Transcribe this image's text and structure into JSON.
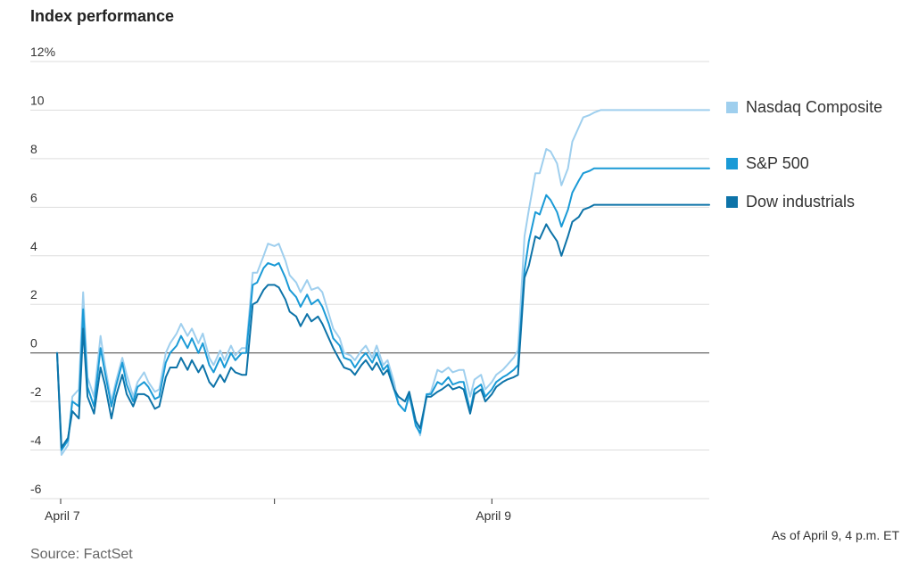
{
  "title": "Index performance",
  "source": "Source: FactSet",
  "as_of": "As of April 9, 4 p.m. ET",
  "colors": {
    "nasdaq": "#9fcfee",
    "sp500": "#1a9ad6",
    "dow": "#0d73a8",
    "grid": "#dddddd",
    "zero": "#555555"
  },
  "chart_data": {
    "type": "line",
    "title": "Index performance",
    "ylim": [
      -6,
      12
    ],
    "yticks": [
      -6,
      -4,
      -2,
      0,
      2,
      4,
      6,
      8,
      10,
      12
    ],
    "ytick_labels": [
      "-6",
      "-4",
      "-2",
      "0",
      "2",
      "4",
      "6",
      "8",
      "10",
      "12%"
    ],
    "xticks": [
      {
        "x": 0,
        "label": "April 7"
      },
      {
        "x": 1,
        "label": ""
      },
      {
        "x": 2,
        "label": "April 9"
      }
    ],
    "xlim": [
      0,
      3
    ],
    "grid": true,
    "legend": "right",
    "series": [
      {
        "name": "Nasdaq Composite",
        "color_key": "nasdaq",
        "x": [
          0,
          0.02,
          0.05,
          0.07,
          0.1,
          0.12,
          0.14,
          0.17,
          0.2,
          0.22,
          0.25,
          0.27,
          0.3,
          0.32,
          0.35,
          0.37,
          0.4,
          0.42,
          0.45,
          0.47,
          0.5,
          0.52,
          0.55,
          0.57,
          0.6,
          0.62,
          0.65,
          0.67,
          0.7,
          0.72,
          0.75,
          0.77,
          0.8,
          0.82,
          0.85,
          0.87,
          0.9,
          0.92,
          0.95,
          0.97,
          1.0,
          1.02,
          1.05,
          1.07,
          1.1,
          1.12,
          1.15,
          1.17,
          1.2,
          1.22,
          1.25,
          1.27,
          1.3,
          1.32,
          1.35,
          1.37,
          1.4,
          1.42,
          1.45,
          1.47,
          1.5,
          1.52,
          1.55,
          1.57,
          1.6,
          1.62,
          1.65,
          1.67,
          1.7,
          1.72,
          1.75,
          1.77,
          1.8,
          1.82,
          1.85,
          1.87,
          1.9,
          1.92,
          1.95,
          1.97,
          2.0,
          2.02,
          2.05,
          2.07,
          2.1,
          2.12,
          2.15,
          2.17,
          2.2,
          2.22,
          2.25,
          2.27,
          2.3,
          2.32,
          2.35,
          2.37,
          2.4,
          2.42,
          2.45,
          2.47,
          2.5,
          2.52,
          2.55,
          2.57,
          2.6,
          2.62,
          2.65,
          2.67,
          2.7,
          2.72,
          2.75,
          2.77,
          2.8,
          2.82,
          2.85,
          2.87,
          2.9,
          2.92,
          2.95,
          2.97,
          3.0
        ],
        "values": [
          0,
          -4.2,
          -3.8,
          -1.8,
          -1.5,
          2.5,
          -1.0,
          -1.8,
          0.7,
          -0.5,
          -2.0,
          -1.2,
          -0.2,
          -0.9,
          -1.8,
          -1.2,
          -0.8,
          -1.2,
          -1.6,
          -1.5,
          0.0,
          0.4,
          0.8,
          1.2,
          0.7,
          1.0,
          0.4,
          0.8,
          -0.2,
          -0.5,
          0.1,
          -0.3,
          0.3,
          -0.1,
          0.2,
          0.2,
          3.3,
          3.3,
          4.0,
          4.5,
          4.4,
          4.5,
          3.8,
          3.2,
          2.9,
          2.5,
          3.0,
          2.6,
          2.7,
          2.5,
          1.6,
          1.0,
          0.6,
          0.0,
          -0.1,
          -0.3,
          0.1,
          0.3,
          -0.2,
          0.3,
          -0.5,
          -0.3,
          -1.2,
          -2.1,
          -2.4,
          -1.8,
          -2.8,
          -3.4,
          -1.8,
          -1.6,
          -0.7,
          -0.8,
          -0.6,
          -0.8,
          -0.7,
          -0.7,
          -1.8,
          -1.1,
          -0.9,
          -1.5,
          -1.2,
          -0.9,
          -0.7,
          -0.5,
          -0.2,
          0.1,
          4.8,
          5.9,
          7.4,
          7.4,
          8.4,
          8.3,
          7.8,
          6.9,
          7.6,
          8.7,
          9.3,
          9.7,
          9.8,
          9.9,
          10.0,
          10.0,
          10.0,
          10.0,
          10.0,
          10.0,
          10.0,
          10.0,
          10.0,
          10.0,
          10.0,
          10.0,
          10.0,
          10.0,
          10.0,
          10.0,
          10.0,
          10.0,
          10.0,
          10.0,
          10.0
        ]
      },
      {
        "name": "S&P 500",
        "color_key": "sp500",
        "x": [
          0,
          0.02,
          0.05,
          0.07,
          0.1,
          0.12,
          0.14,
          0.17,
          0.2,
          0.22,
          0.25,
          0.27,
          0.3,
          0.32,
          0.35,
          0.37,
          0.4,
          0.42,
          0.45,
          0.47,
          0.5,
          0.52,
          0.55,
          0.57,
          0.6,
          0.62,
          0.65,
          0.67,
          0.7,
          0.72,
          0.75,
          0.77,
          0.8,
          0.82,
          0.85,
          0.87,
          0.9,
          0.92,
          0.95,
          0.97,
          1.0,
          1.02,
          1.05,
          1.07,
          1.1,
          1.12,
          1.15,
          1.17,
          1.2,
          1.22,
          1.25,
          1.27,
          1.3,
          1.32,
          1.35,
          1.37,
          1.4,
          1.42,
          1.45,
          1.47,
          1.5,
          1.52,
          1.55,
          1.57,
          1.6,
          1.62,
          1.65,
          1.67,
          1.7,
          1.72,
          1.75,
          1.77,
          1.8,
          1.82,
          1.85,
          1.87,
          1.9,
          1.92,
          1.95,
          1.97,
          2.0,
          2.02,
          2.05,
          2.07,
          2.1,
          2.12,
          2.15,
          2.17,
          2.2,
          2.22,
          2.25,
          2.27,
          2.3,
          2.32,
          2.35,
          2.37,
          2.4,
          2.42,
          2.45,
          2.47,
          2.5,
          2.52,
          2.55,
          2.57,
          2.6,
          2.62,
          2.65,
          2.67,
          2.7,
          2.72,
          2.75,
          2.77,
          2.8,
          2.82,
          2.85,
          2.87,
          2.9,
          2.92,
          2.95,
          2.97,
          3.0
        ],
        "values": [
          0,
          -4.0,
          -3.6,
          -2.0,
          -2.2,
          1.8,
          -1.4,
          -2.2,
          0.2,
          -0.8,
          -2.2,
          -1.4,
          -0.4,
          -1.3,
          -2.0,
          -1.4,
          -1.2,
          -1.4,
          -1.9,
          -1.8,
          -0.4,
          0.0,
          0.3,
          0.7,
          0.2,
          0.6,
          0.0,
          0.4,
          -0.5,
          -0.8,
          -0.2,
          -0.6,
          0.0,
          -0.3,
          0.0,
          0.0,
          2.8,
          2.9,
          3.5,
          3.7,
          3.6,
          3.7,
          3.1,
          2.6,
          2.3,
          1.9,
          2.4,
          2.0,
          2.2,
          1.9,
          1.2,
          0.6,
          0.3,
          -0.2,
          -0.3,
          -0.6,
          -0.2,
          0.0,
          -0.4,
          0.0,
          -0.7,
          -0.5,
          -1.5,
          -2.1,
          -2.4,
          -1.7,
          -3.0,
          -3.3,
          -1.7,
          -1.7,
          -1.2,
          -1.3,
          -1.0,
          -1.3,
          -1.2,
          -1.2,
          -2.4,
          -1.5,
          -1.3,
          -1.8,
          -1.5,
          -1.2,
          -1.0,
          -0.9,
          -0.7,
          -0.5,
          3.4,
          4.6,
          5.8,
          5.7,
          6.5,
          6.3,
          5.8,
          5.2,
          5.9,
          6.6,
          7.1,
          7.4,
          7.5,
          7.6,
          7.6,
          7.6,
          7.6,
          7.6,
          7.6,
          7.6,
          7.6,
          7.6,
          7.6,
          7.6,
          7.6,
          7.6,
          7.6,
          7.6,
          7.6,
          7.6,
          7.6,
          7.6,
          7.6,
          7.6,
          7.6
        ]
      },
      {
        "name": "Dow industrials",
        "color_key": "dow",
        "x": [
          0,
          0.02,
          0.05,
          0.07,
          0.1,
          0.12,
          0.14,
          0.17,
          0.2,
          0.22,
          0.25,
          0.27,
          0.3,
          0.32,
          0.35,
          0.37,
          0.4,
          0.42,
          0.45,
          0.47,
          0.5,
          0.52,
          0.55,
          0.57,
          0.6,
          0.62,
          0.65,
          0.67,
          0.7,
          0.72,
          0.75,
          0.77,
          0.8,
          0.82,
          0.85,
          0.87,
          0.9,
          0.92,
          0.95,
          0.97,
          1.0,
          1.02,
          1.05,
          1.07,
          1.1,
          1.12,
          1.15,
          1.17,
          1.2,
          1.22,
          1.25,
          1.27,
          1.3,
          1.32,
          1.35,
          1.37,
          1.4,
          1.42,
          1.45,
          1.47,
          1.5,
          1.52,
          1.55,
          1.57,
          1.6,
          1.62,
          1.65,
          1.67,
          1.7,
          1.72,
          1.75,
          1.77,
          1.8,
          1.82,
          1.85,
          1.87,
          1.9,
          1.92,
          1.95,
          1.97,
          2.0,
          2.02,
          2.05,
          2.07,
          2.1,
          2.12,
          2.15,
          2.17,
          2.2,
          2.22,
          2.25,
          2.27,
          2.3,
          2.32,
          2.35,
          2.37,
          2.4,
          2.42,
          2.45,
          2.47,
          2.5,
          2.52,
          2.55,
          2.57,
          2.6,
          2.62,
          2.65,
          2.67,
          2.7,
          2.72,
          2.75,
          2.77,
          2.8,
          2.82,
          2.85,
          2.87,
          2.9,
          2.92,
          2.95,
          2.97,
          3.0
        ],
        "values": [
          0,
          -3.9,
          -3.5,
          -2.4,
          -2.7,
          1.0,
          -1.8,
          -2.5,
          -0.6,
          -1.3,
          -2.7,
          -1.8,
          -0.9,
          -1.7,
          -2.2,
          -1.7,
          -1.7,
          -1.8,
          -2.3,
          -2.2,
          -1.0,
          -0.6,
          -0.6,
          -0.2,
          -0.7,
          -0.3,
          -0.8,
          -0.5,
          -1.2,
          -1.4,
          -0.9,
          -1.2,
          -0.6,
          -0.8,
          -0.9,
          -0.9,
          2.0,
          2.1,
          2.6,
          2.8,
          2.8,
          2.7,
          2.2,
          1.7,
          1.5,
          1.1,
          1.6,
          1.3,
          1.5,
          1.2,
          0.6,
          0.2,
          -0.3,
          -0.6,
          -0.7,
          -0.9,
          -0.5,
          -0.3,
          -0.7,
          -0.4,
          -0.9,
          -0.7,
          -1.5,
          -1.8,
          -2.0,
          -1.6,
          -2.8,
          -3.1,
          -1.8,
          -1.8,
          -1.6,
          -1.5,
          -1.3,
          -1.5,
          -1.4,
          -1.5,
          -2.5,
          -1.7,
          -1.5,
          -2.0,
          -1.7,
          -1.4,
          -1.2,
          -1.1,
          -1.0,
          -0.9,
          3.1,
          3.6,
          4.8,
          4.7,
          5.3,
          5.0,
          4.6,
          4.0,
          4.8,
          5.4,
          5.6,
          5.9,
          6.0,
          6.1,
          6.1,
          6.1,
          6.1,
          6.1,
          6.1,
          6.1,
          6.1,
          6.1,
          6.1,
          6.1,
          6.1,
          6.1,
          6.1,
          6.1,
          6.1,
          6.1,
          6.1,
          6.1,
          6.1,
          6.1,
          6.1
        ]
      }
    ]
  },
  "legend_items": [
    {
      "label": "Nasdaq Composite",
      "color_key": "nasdaq"
    },
    {
      "label": "S&P 500",
      "color_key": "sp500"
    },
    {
      "label": "Dow industrials",
      "color_key": "dow"
    }
  ]
}
